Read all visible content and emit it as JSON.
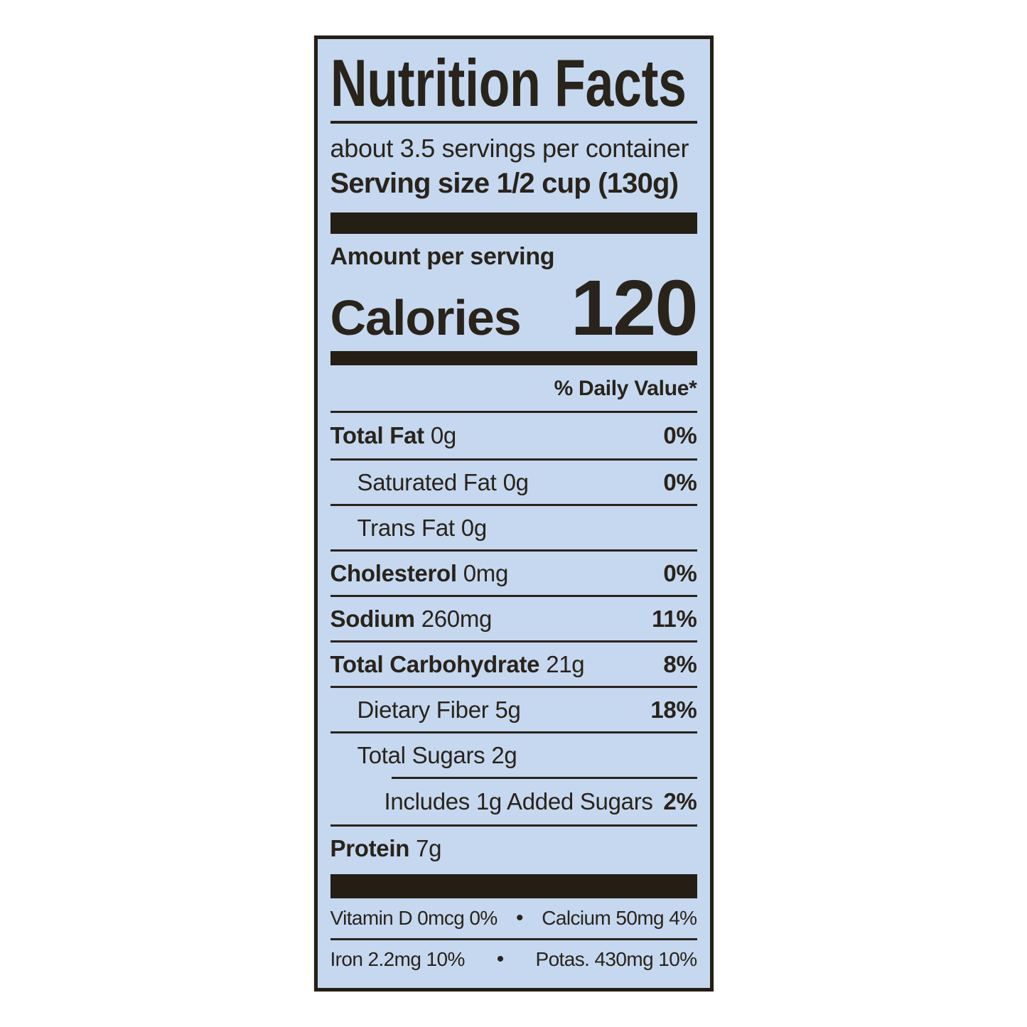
{
  "colors": {
    "label_background": "#c6d8ef",
    "ink": "#29231a",
    "bar": "#241e14",
    "page_background": "#ffffff"
  },
  "header": {
    "title": "Nutrition Facts",
    "servings_per_container": "about 3.5 servings per container",
    "serving_size": "Serving size 1/2 cup (130g)"
  },
  "calories_section": {
    "amount_per_serving": "Amount per serving",
    "calories_label": "Calories",
    "calories_value": "120"
  },
  "daily_value_header": "% Daily Value*",
  "rows": [
    {
      "name": "Total Fat",
      "amount": "0g",
      "dv": "0%"
    },
    {
      "name": "Saturated Fat",
      "amount": "0g",
      "dv": "0%"
    },
    {
      "name": "Trans Fat",
      "amount": "0g",
      "dv": ""
    },
    {
      "name": "Cholesterol",
      "amount": "0mg",
      "dv": "0%"
    },
    {
      "name": "Sodium",
      "amount": "260mg",
      "dv": "11%"
    },
    {
      "name": "Total Carbohydrate",
      "amount": "21g",
      "dv": "8%"
    },
    {
      "name": "Dietary Fiber",
      "amount": "5g",
      "dv": "18%"
    },
    {
      "name": "Total Sugars",
      "amount": "2g",
      "dv": ""
    },
    {
      "name": "Includes 1g Added Sugars",
      "amount": "",
      "dv": "2%"
    },
    {
      "name": "Protein",
      "amount": "7g",
      "dv": ""
    }
  ],
  "micronutrients": {
    "row1": {
      "left": "Vitamin D 0mcg 0%",
      "bullet": "•",
      "right": "Calcium 50mg 4%"
    },
    "row2": {
      "left": "Iron 2.2mg 10%",
      "bullet": "•",
      "right": "Potas. 430mg 10%"
    }
  }
}
